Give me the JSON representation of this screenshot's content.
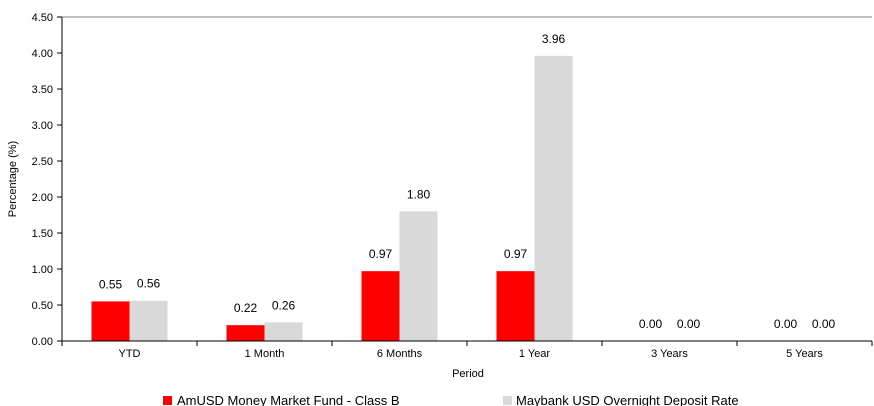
{
  "chart_data": {
    "type": "bar",
    "xlabel": "Period",
    "ylabel": "Percentage (%)",
    "ylim": [
      0,
      4.5
    ],
    "ytick_step": 0.5,
    "grid": false,
    "legend_position": "bottom",
    "categories": [
      "YTD",
      "1 Month",
      "6 Months",
      "1 Year",
      "3 Years",
      "5 Years"
    ],
    "series": [
      {
        "name": "AmUSD Money Market Fund - Class B",
        "color": "#ff0000",
        "values": [
          0.55,
          0.22,
          0.97,
          0.97,
          0.0,
          0.0
        ],
        "labels": [
          "0.55",
          "0.22",
          "0.97",
          "0.97",
          "0.00",
          "0.00"
        ]
      },
      {
        "name": "Maybank USD Overnight Deposit Rate",
        "color": "#d9d9d9",
        "values": [
          0.56,
          0.26,
          1.8,
          3.96,
          0.0,
          0.0
        ],
        "labels": [
          "0.56",
          "0.26",
          "1.80",
          "3.96",
          "0.00",
          "0.00"
        ]
      }
    ]
  }
}
